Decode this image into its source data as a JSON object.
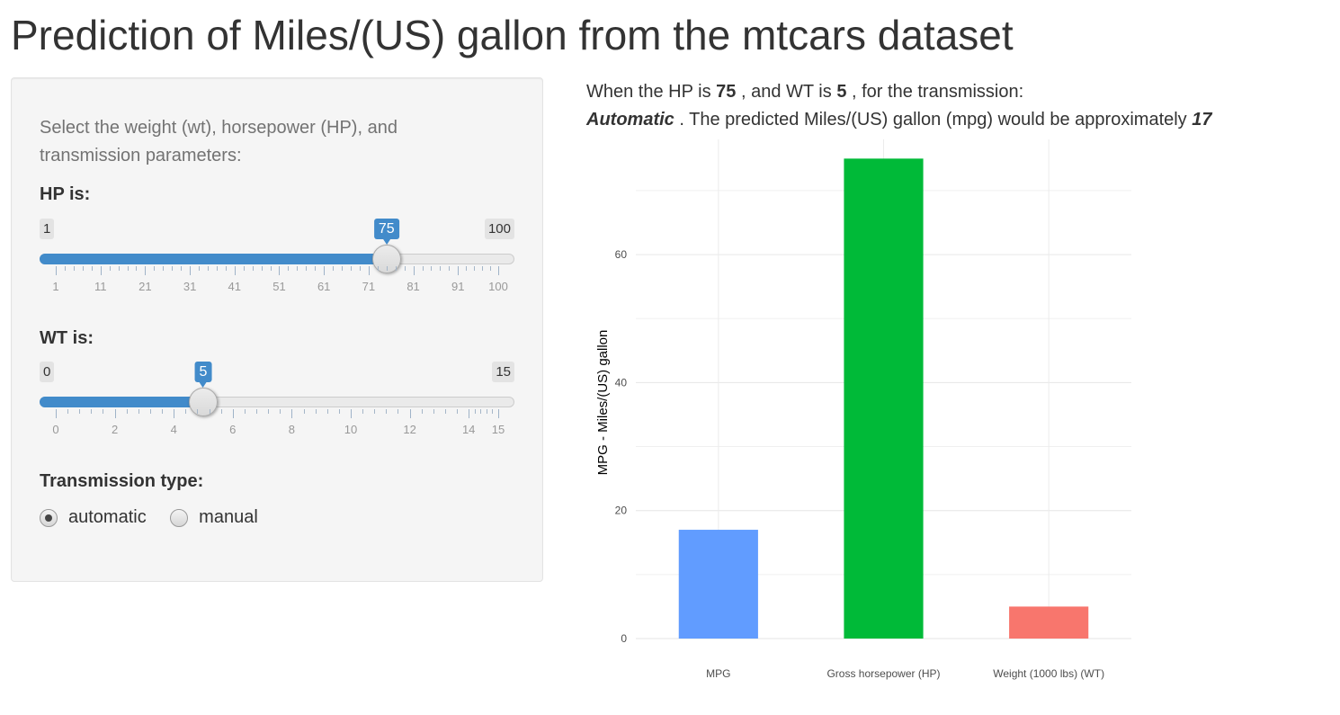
{
  "page": {
    "title": "Prediction of Miles/(US) gallon from the mtcars dataset"
  },
  "sidebar": {
    "help_text": "Select the weight (wt), horsepower (HP), and transmission parameters:",
    "hp_slider": {
      "label": "HP is:",
      "min": 1,
      "max": 100,
      "value": 75,
      "min_label": "1",
      "max_label": "100",
      "value_label": "75",
      "tick_labels": [
        "1",
        "11",
        "21",
        "31",
        "41",
        "51",
        "61",
        "71",
        "81",
        "91",
        "100"
      ]
    },
    "wt_slider": {
      "label": "WT is:",
      "min": 0,
      "max": 15,
      "value": 5,
      "min_label": "0",
      "max_label": "15",
      "value_label": "5",
      "tick_labels": [
        "0",
        "2",
        "4",
        "6",
        "8",
        "10",
        "12",
        "14",
        "15"
      ]
    },
    "transmission": {
      "label": "Transmission type:",
      "options": [
        {
          "label": "automatic",
          "checked": true
        },
        {
          "label": "manual",
          "checked": false
        }
      ]
    }
  },
  "result": {
    "prefix": "When the HP is",
    "hp": "75",
    "mid1": ", and WT is",
    "wt": "5",
    "mid2": ", for the transmission:",
    "transmission": "Automatic",
    "mid3": ". The predicted Miles/(US) gallon (mpg) would be approximately",
    "mpg": "17"
  },
  "chart_data": {
    "type": "bar",
    "categories": [
      "MPG",
      "Gross horsepower (HP)",
      "Weight (1000 lbs) (WT)"
    ],
    "values": [
      17,
      75,
      5
    ],
    "colors": [
      "#619cff",
      "#00ba38",
      "#f8766d"
    ],
    "ylabel": "MPG - Miles/(US) gallon",
    "xlabel": "",
    "yticks": [
      0,
      20,
      40,
      60
    ],
    "ylim": [
      0,
      78
    ],
    "grid": true,
    "legend": "none"
  }
}
